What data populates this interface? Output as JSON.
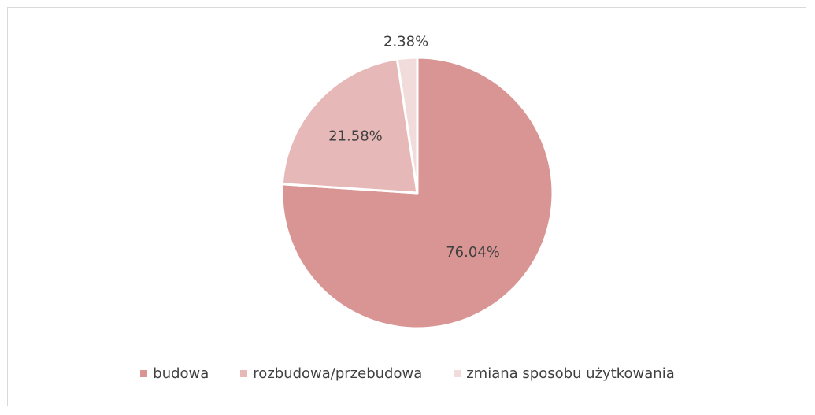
{
  "chart_data": {
    "type": "pie",
    "title": "",
    "series": [
      {
        "name": "budowa",
        "value": 76.04,
        "label": "76.04%",
        "color": "#d99594"
      },
      {
        "name": "rozbudowa/przebudowa",
        "value": 21.58,
        "label": "21.58%",
        "color": "#e6b8b7"
      },
      {
        "name": "zmiana sposobu użytkowania",
        "value": 2.38,
        "label": "2.38%",
        "color": "#f2dcdb"
      }
    ],
    "legend_position": "bottom",
    "start_angle": "top, clockwise"
  }
}
